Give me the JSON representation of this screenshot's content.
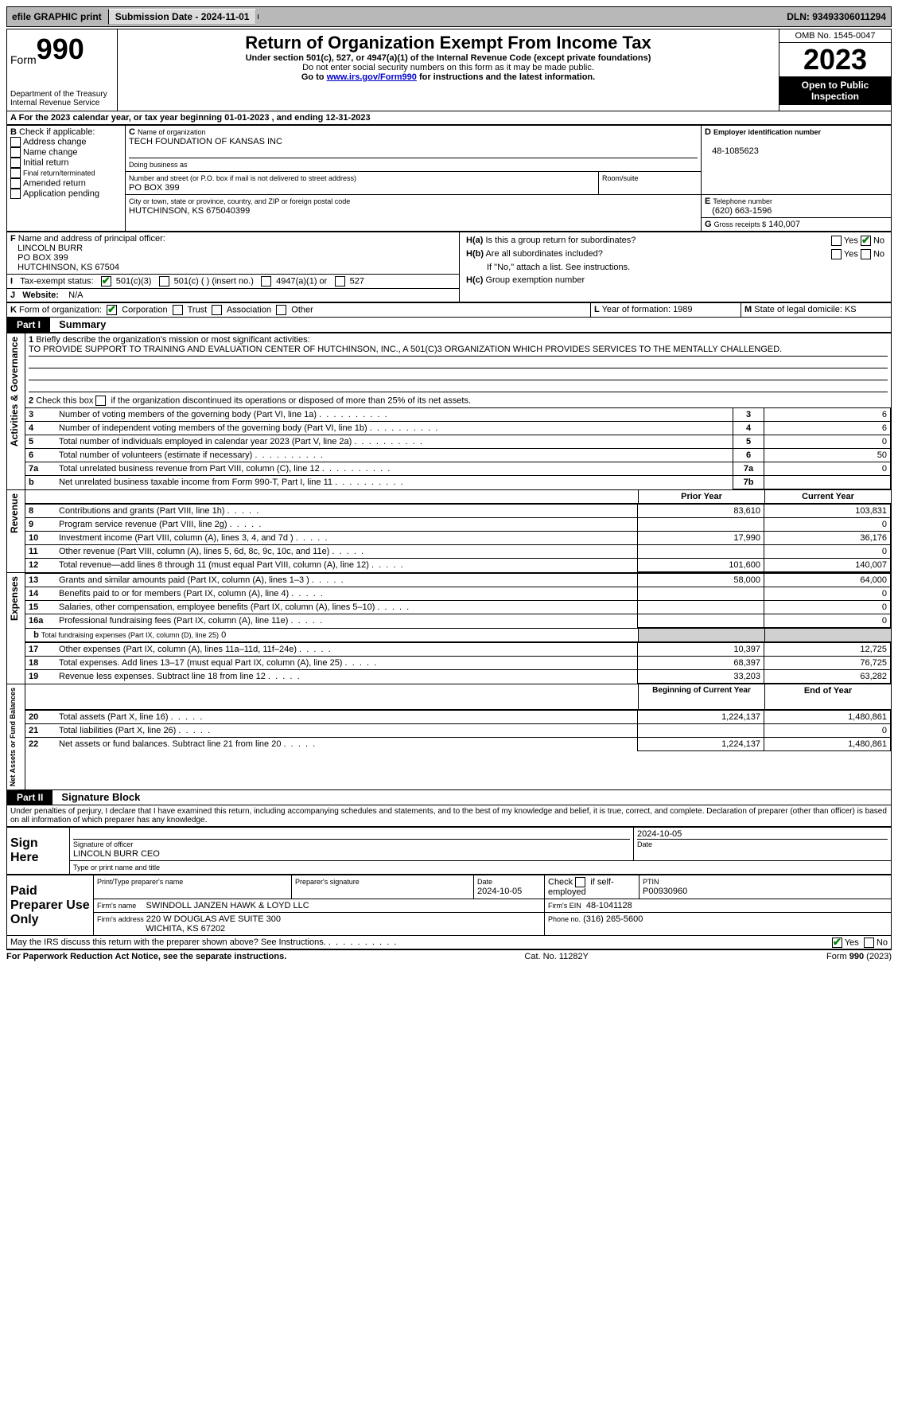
{
  "topbar": {
    "efile": "efile GRAPHIC print",
    "submission": "Submission Date - 2024-11-01",
    "dln": "DLN: 93493306011294"
  },
  "header": {
    "form_word": "Form",
    "form_num": "990",
    "title": "Return of Organization Exempt From Income Tax",
    "subtitle": "Under section 501(c), 527, or 4947(a)(1) of the Internal Revenue Code (except private foundations)",
    "nossn": "Do not enter social security numbers on this form as it may be made public.",
    "goto_pre": "Go to ",
    "goto_link": "www.irs.gov/Form990",
    "goto_post": " for instructions and the latest information.",
    "dept1": "Department of the Treasury",
    "dept2": "Internal Revenue Service",
    "omb": "OMB No. 1545-0047",
    "year": "2023",
    "open": "Open to Public Inspection"
  },
  "a_line": {
    "pre": "For the 2023 calendar year, or tax year beginning ",
    "begin": "01-01-2023",
    "mid": " , and ending ",
    "end": "12-31-2023"
  },
  "b": {
    "label": "Check if applicable:",
    "items": [
      "Address change",
      "Name change",
      "Initial return",
      "Final return/terminated",
      "Amended return",
      "Application pending"
    ]
  },
  "c": {
    "name_label": "Name of organization",
    "name": "TECH FOUNDATION OF KANSAS INC",
    "dba_label": "Doing business as",
    "street_label": "Number and street (or P.O. box if mail is not delivered to street address)",
    "street": "PO BOX 399",
    "room_label": "Room/suite",
    "city_label": "City or town, state or province, country, and ZIP or foreign postal code",
    "city": "HUTCHINSON, KS  675040399"
  },
  "d": {
    "label": "Employer identification number",
    "value": "48-1085623"
  },
  "e": {
    "label": "Telephone number",
    "value": "(620) 663-1596"
  },
  "g": {
    "label": "Gross receipts $",
    "value": "140,007"
  },
  "f": {
    "label": "Name and address of principal officer:",
    "name": "LINCOLN BURR",
    "street": "PO BOX 399",
    "city": "HUTCHINSON, KS  67504"
  },
  "h": {
    "a": "Is this a group return for subordinates?",
    "b": "Are all subordinates included?",
    "b_note": "If \"No,\" attach a list. See instructions.",
    "c": "Group exemption number",
    "yes": "Yes",
    "no": "No"
  },
  "i": {
    "label": "Tax-exempt status:",
    "opts": [
      "501(c)(3)",
      "501(c) (   ) (insert no.)",
      "4947(a)(1) or",
      "527"
    ]
  },
  "j": {
    "label": "Website:",
    "value": "N/A"
  },
  "k": {
    "label": "Form of organization:",
    "opts": [
      "Corporation",
      "Trust",
      "Association",
      "Other"
    ]
  },
  "l": {
    "label": "Year of formation:",
    "value": "1989"
  },
  "m": {
    "label": "State of legal domicile:",
    "value": "KS"
  },
  "part1": {
    "label": "Part I",
    "title": "Summary",
    "l1_label": "Briefly describe the organization's mission or most significant activities:",
    "l1_text": "TO PROVIDE SUPPORT TO TRAINING AND EVALUATION CENTER OF HUTCHINSON, INC., A 501(C)3 ORGANIZATION WHICH PROVIDES SERVICES TO THE MENTALLY CHALLENGED.",
    "l2": "Check this box     if the organization discontinued its operations or disposed of more than 25% of its net assets.",
    "rows_ag": [
      {
        "n": "3",
        "t": "Number of voting members of the governing body (Part VI, line 1a)",
        "box": "3",
        "v": "6"
      },
      {
        "n": "4",
        "t": "Number of independent voting members of the governing body (Part VI, line 1b)",
        "box": "4",
        "v": "6"
      },
      {
        "n": "5",
        "t": "Total number of individuals employed in calendar year 2023 (Part V, line 2a)",
        "box": "5",
        "v": "0"
      },
      {
        "n": "6",
        "t": "Total number of volunteers (estimate if necessary)",
        "box": "6",
        "v": "50"
      },
      {
        "n": "7a",
        "t": "Total unrelated business revenue from Part VIII, column (C), line 12",
        "box": "7a",
        "v": "0"
      },
      {
        "n": "b",
        "t": "Net unrelated business taxable income from Form 990-T, Part I, line 11",
        "box": "7b",
        "v": ""
      }
    ],
    "col_prior": "Prior Year",
    "col_current": "Current Year",
    "rev_rows": [
      {
        "n": "8",
        "t": "Contributions and grants (Part VIII, line 1h)",
        "p": "83,610",
        "c": "103,831"
      },
      {
        "n": "9",
        "t": "Program service revenue (Part VIII, line 2g)",
        "p": "",
        "c": "0"
      },
      {
        "n": "10",
        "t": "Investment income (Part VIII, column (A), lines 3, 4, and 7d )",
        "p": "17,990",
        "c": "36,176"
      },
      {
        "n": "11",
        "t": "Other revenue (Part VIII, column (A), lines 5, 6d, 8c, 9c, 10c, and 11e)",
        "p": "",
        "c": "0"
      },
      {
        "n": "12",
        "t": "Total revenue—add lines 8 through 11 (must equal Part VIII, column (A), line 12)",
        "p": "101,600",
        "c": "140,007"
      }
    ],
    "exp_rows": [
      {
        "n": "13",
        "t": "Grants and similar amounts paid (Part IX, column (A), lines 1–3 )",
        "p": "58,000",
        "c": "64,000"
      },
      {
        "n": "14",
        "t": "Benefits paid to or for members (Part IX, column (A), line 4)",
        "p": "",
        "c": "0"
      },
      {
        "n": "15",
        "t": "Salaries, other compensation, employee benefits (Part IX, column (A), lines 5–10)",
        "p": "",
        "c": "0"
      },
      {
        "n": "16a",
        "t": "Professional fundraising fees (Part IX, column (A), line 11e)",
        "p": "",
        "c": "0"
      }
    ],
    "exp_16b_pre": "Total fundraising expenses (Part IX, column (D), line 25)",
    "exp_16b_val": "0",
    "exp_rows2": [
      {
        "n": "17",
        "t": "Other expenses (Part IX, column (A), lines 11a–11d, 11f–24e)",
        "p": "10,397",
        "c": "12,725"
      },
      {
        "n": "18",
        "t": "Total expenses. Add lines 13–17 (must equal Part IX, column (A), line 25)",
        "p": "68,397",
        "c": "76,725"
      },
      {
        "n": "19",
        "t": "Revenue less expenses. Subtract line 18 from line 12",
        "p": "33,203",
        "c": "63,282"
      }
    ],
    "na_begin": "Beginning of Current Year",
    "na_end": "End of Year",
    "na_rows": [
      {
        "n": "20",
        "t": "Total assets (Part X, line 16)",
        "p": "1,224,137",
        "c": "1,480,861"
      },
      {
        "n": "21",
        "t": "Total liabilities (Part X, line 26)",
        "p": "",
        "c": "0"
      },
      {
        "n": "22",
        "t": "Net assets or fund balances. Subtract line 21 from line 20",
        "p": "1,224,137",
        "c": "1,480,861"
      }
    ],
    "side_ag": "Activities & Governance",
    "side_rev": "Revenue",
    "side_exp": "Expenses",
    "side_na": "Net Assets or Fund Balances"
  },
  "part2": {
    "label": "Part II",
    "title": "Signature Block",
    "perjury": "Under penalties of perjury, I declare that I have examined this return, including accompanying schedules and statements, and to the best of my knowledge and belief, it is true, correct, and complete. Declaration of preparer (other than officer) is based on all information of which preparer has any knowledge.",
    "sign_here": "Sign Here",
    "sig_officer": "Signature of officer",
    "officer_name": "LINCOLN BURR  CEO",
    "type_name": "Type or print name and title",
    "date_label": "Date",
    "date1": "2024-10-05",
    "paid": "Paid Preparer Use Only",
    "print_name": "Print/Type preparer's name",
    "prep_sig": "Preparer's signature",
    "date2": "2024-10-05",
    "check_self": "Check         if self-employed",
    "ptin_label": "PTIN",
    "ptin": "P00930960",
    "firm_name_l": "Firm's name",
    "firm_name": "SWINDOLL JANZEN HAWK & LOYD LLC",
    "firm_ein_l": "Firm's EIN",
    "firm_ein": "48-1041128",
    "firm_addr_l": "Firm's address",
    "firm_addr1": "220 W DOUGLAS AVE SUITE 300",
    "firm_addr2": "WICHITA, KS  67202",
    "phone_l": "Phone no.",
    "phone": "(316) 265-5600",
    "discuss": "May the IRS discuss this return with the preparer shown above? See Instructions."
  },
  "footer": {
    "pra": "For Paperwork Reduction Act Notice, see the separate instructions.",
    "cat": "Cat. No. 11282Y",
    "form": "Form 990 (2023)"
  }
}
